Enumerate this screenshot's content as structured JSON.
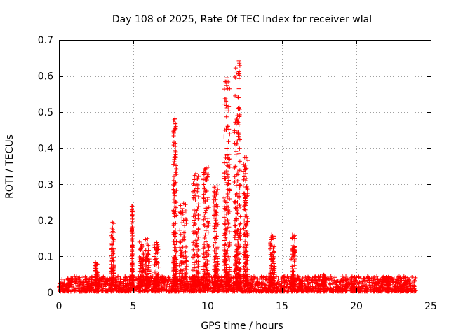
{
  "chart_data": {
    "type": "scatter",
    "title": "Day 108 of 2025, Rate Of TEC Index for receiver wlal",
    "xlabel": "GPS time / hours",
    "ylabel": "ROTI / TECUs",
    "xlim": [
      0,
      25
    ],
    "ylim": [
      0,
      0.7
    ],
    "xticks": [
      0,
      5,
      10,
      15,
      20,
      25
    ],
    "yticks": [
      0,
      0.1,
      0.2,
      0.3,
      0.4,
      0.5,
      0.6,
      0.7
    ],
    "grid": true,
    "marker": "+",
    "colors": {
      "series": "#ff0000",
      "axis": "#000000",
      "grid": "#a0a0a0"
    },
    "background_band": {
      "description": "dense baseline of points between 0 and ~0.04 across 0-24 h",
      "x_range": [
        0,
        24
      ],
      "y_range": [
        0.003,
        0.045
      ]
    },
    "spike_clusters": [
      {
        "x": [
          2.4,
          2.6
        ],
        "ymax": 0.085
      },
      {
        "x": [
          3.5,
          3.7
        ],
        "ymax": 0.195
      },
      {
        "x": [
          4.9,
          4.95
        ],
        "ymax": 0.24
      },
      {
        "x": [
          5.4,
          5.7
        ],
        "ymax": 0.14
      },
      {
        "x": [
          5.8,
          6.1
        ],
        "ymax": 0.15
      },
      {
        "x": [
          6.4,
          6.7
        ],
        "ymax": 0.14
      },
      {
        "x": [
          7.7,
          7.9
        ],
        "ymax": 0.48
      },
      {
        "x": [
          8.1,
          8.6
        ],
        "ymax": 0.25
      },
      {
        "x": [
          9.0,
          9.4
        ],
        "ymax": 0.33
      },
      {
        "x": [
          9.7,
          10.1
        ],
        "ymax": 0.35
      },
      {
        "x": [
          10.4,
          10.7
        ],
        "ymax": 0.3
      },
      {
        "x": [
          11.1,
          11.5
        ],
        "ymax": 0.595
      },
      {
        "x": [
          11.8,
          12.2
        ],
        "ymax": 0.645
      },
      {
        "x": [
          12.4,
          12.7
        ],
        "ymax": 0.375
      },
      {
        "x": [
          14.2,
          14.5
        ],
        "ymax": 0.16
      },
      {
        "x": [
          15.6,
          15.9
        ],
        "ymax": 0.16
      },
      {
        "x": [
          17.7,
          17.9
        ],
        "ymax": 0.05
      },
      {
        "x": [
          22.0,
          22.2
        ],
        "ymax": 0.045
      }
    ],
    "notable_points": [
      {
        "x": 7.8,
        "y": 0.482
      },
      {
        "x": 7.85,
        "y": 0.39
      },
      {
        "x": 7.8,
        "y": 0.28
      },
      {
        "x": 4.9,
        "y": 0.239
      },
      {
        "x": 4.9,
        "y": 0.17
      },
      {
        "x": 3.6,
        "y": 0.195
      },
      {
        "x": 11.3,
        "y": 0.595
      },
      {
        "x": 11.35,
        "y": 0.565
      },
      {
        "x": 11.3,
        "y": 0.512
      },
      {
        "x": 11.25,
        "y": 0.452
      },
      {
        "x": 11.3,
        "y": 0.38
      },
      {
        "x": 11.3,
        "y": 0.305
      },
      {
        "x": 12.1,
        "y": 0.642
      },
      {
        "x": 12.1,
        "y": 0.628
      },
      {
        "x": 12.05,
        "y": 0.607
      },
      {
        "x": 12.1,
        "y": 0.565
      },
      {
        "x": 12.05,
        "y": 0.54
      },
      {
        "x": 12.15,
        "y": 0.508
      },
      {
        "x": 12.05,
        "y": 0.472
      },
      {
        "x": 12.1,
        "y": 0.438
      },
      {
        "x": 12.6,
        "y": 0.375
      },
      {
        "x": 12.55,
        "y": 0.33
      },
      {
        "x": 9.9,
        "y": 0.345
      },
      {
        "x": 9.2,
        "y": 0.33
      },
      {
        "x": 14.3,
        "y": 0.16
      },
      {
        "x": 15.7,
        "y": 0.16
      }
    ]
  }
}
